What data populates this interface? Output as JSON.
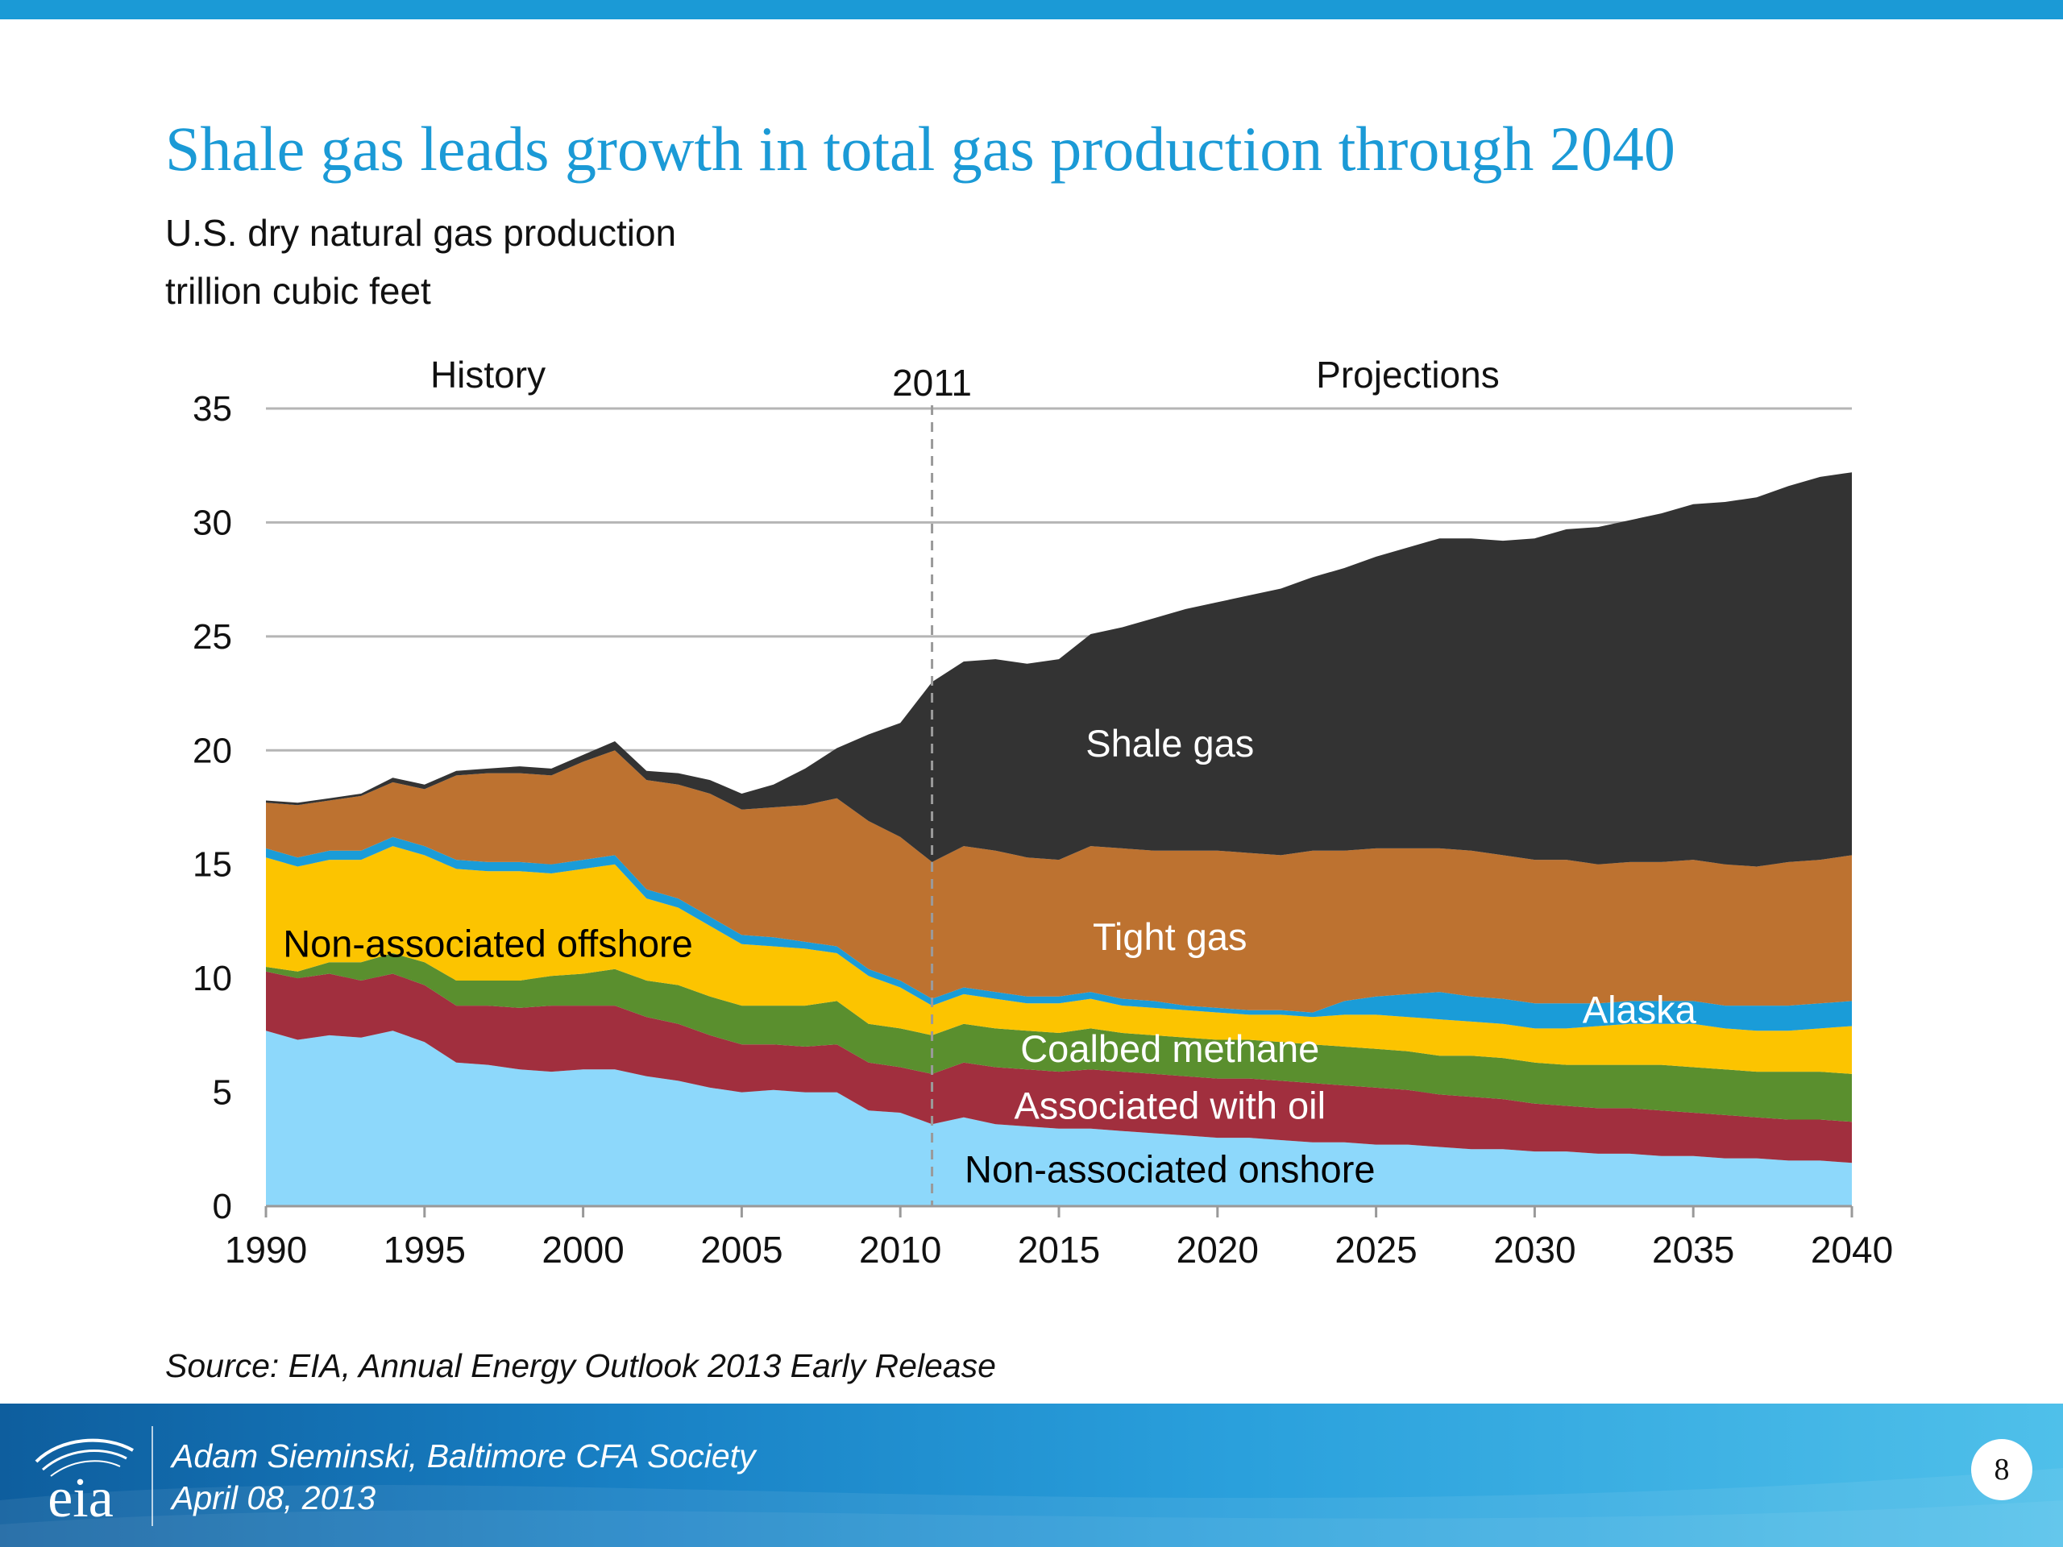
{
  "slide": {
    "title": "Shale gas leads growth in total gas production through 2040",
    "subtitle_line1": "U.S. dry natural gas production",
    "subtitle_line2": "trillion cubic feet",
    "source": "Source:  EIA, Annual Energy Outlook 2013 Early Release",
    "footer_line1": "Adam Sieminski, Baltimore CFA Society",
    "footer_line2": "April 08, 2013",
    "logo_text": "eia",
    "page_number": "8"
  },
  "colors": {
    "brand": "#1b9ad6",
    "non_associated_onshore": "#8dd8fb",
    "associated_with_oil": "#a12f3e",
    "coalbed_methane": "#5a8f2e",
    "non_associated_offshore": "#fcc400",
    "alaska": "#1a9cd8",
    "tight_gas": "#bd7230",
    "shale_gas": "#333333"
  },
  "chart_data": {
    "type": "area",
    "stacked": true,
    "x": [
      1990,
      1991,
      1992,
      1993,
      1994,
      1995,
      1996,
      1997,
      1998,
      1999,
      2000,
      2001,
      2002,
      2003,
      2004,
      2005,
      2006,
      2007,
      2008,
      2009,
      2010,
      2011,
      2012,
      2013,
      2014,
      2015,
      2016,
      2017,
      2018,
      2019,
      2020,
      2021,
      2022,
      2023,
      2024,
      2025,
      2026,
      2027,
      2028,
      2029,
      2030,
      2031,
      2032,
      2033,
      2034,
      2035,
      2036,
      2037,
      2038,
      2039,
      2040
    ],
    "series": [
      {
        "name": "Non-associated onshore",
        "color": "#8dd8fb",
        "values": [
          7.7,
          7.3,
          7.5,
          7.4,
          7.7,
          7.2,
          6.3,
          6.2,
          6.0,
          5.9,
          6.0,
          6.0,
          5.7,
          5.5,
          5.2,
          5.0,
          5.1,
          5.0,
          5.0,
          4.2,
          4.1,
          3.6,
          3.9,
          3.6,
          3.5,
          3.4,
          3.4,
          3.3,
          3.2,
          3.1,
          3.0,
          3.0,
          2.9,
          2.8,
          2.8,
          2.7,
          2.7,
          2.6,
          2.5,
          2.5,
          2.4,
          2.4,
          2.3,
          2.3,
          2.2,
          2.2,
          2.1,
          2.1,
          2.0,
          2.0,
          1.9
        ]
      },
      {
        "name": "Associated with oil",
        "color": "#a12f3e",
        "values": [
          2.6,
          2.7,
          2.7,
          2.5,
          2.5,
          2.5,
          2.5,
          2.6,
          2.7,
          2.9,
          2.8,
          2.8,
          2.6,
          2.5,
          2.3,
          2.1,
          2.0,
          2.0,
          2.1,
          2.1,
          2.0,
          2.2,
          2.4,
          2.5,
          2.5,
          2.5,
          2.6,
          2.6,
          2.6,
          2.6,
          2.6,
          2.6,
          2.6,
          2.6,
          2.5,
          2.5,
          2.4,
          2.3,
          2.3,
          2.2,
          2.1,
          2.0,
          2.0,
          2.0,
          2.0,
          1.9,
          1.9,
          1.8,
          1.8,
          1.8,
          1.8
        ]
      },
      {
        "name": "Coalbed methane",
        "color": "#5a8f2e",
        "values": [
          0.2,
          0.3,
          0.5,
          0.8,
          0.9,
          1.0,
          1.1,
          1.1,
          1.2,
          1.3,
          1.4,
          1.6,
          1.6,
          1.7,
          1.7,
          1.7,
          1.7,
          1.8,
          1.9,
          1.7,
          1.7,
          1.7,
          1.7,
          1.7,
          1.7,
          1.7,
          1.8,
          1.7,
          1.7,
          1.7,
          1.7,
          1.7,
          1.7,
          1.7,
          1.7,
          1.7,
          1.7,
          1.7,
          1.8,
          1.8,
          1.8,
          1.8,
          1.9,
          1.9,
          2.0,
          2.0,
          2.0,
          2.0,
          2.1,
          2.1,
          2.1
        ]
      },
      {
        "name": "Non-associated offshore",
        "color": "#fcc400",
        "values": [
          4.8,
          4.6,
          4.5,
          4.5,
          4.7,
          4.7,
          4.9,
          4.8,
          4.8,
          4.5,
          4.6,
          4.6,
          3.6,
          3.4,
          3.1,
          2.7,
          2.6,
          2.5,
          2.1,
          2.1,
          1.8,
          1.3,
          1.3,
          1.3,
          1.2,
          1.3,
          1.3,
          1.2,
          1.2,
          1.2,
          1.2,
          1.1,
          1.2,
          1.2,
          1.4,
          1.5,
          1.5,
          1.6,
          1.5,
          1.5,
          1.5,
          1.6,
          1.7,
          1.8,
          1.8,
          1.9,
          1.8,
          1.8,
          1.8,
          1.9,
          2.1
        ]
      },
      {
        "name": "Alaska",
        "color": "#1a9cd8",
        "values": [
          0.4,
          0.4,
          0.4,
          0.4,
          0.4,
          0.4,
          0.4,
          0.4,
          0.4,
          0.4,
          0.4,
          0.4,
          0.4,
          0.4,
          0.4,
          0.4,
          0.4,
          0.3,
          0.3,
          0.3,
          0.3,
          0.3,
          0.3,
          0.3,
          0.3,
          0.3,
          0.3,
          0.3,
          0.3,
          0.2,
          0.2,
          0.2,
          0.2,
          0.2,
          0.6,
          0.8,
          1.0,
          1.2,
          1.1,
          1.1,
          1.1,
          1.1,
          1.0,
          1.0,
          1.0,
          1.0,
          1.0,
          1.1,
          1.1,
          1.1,
          1.1
        ]
      },
      {
        "name": "Tight gas",
        "color": "#bd7230",
        "values": [
          2.0,
          2.3,
          2.2,
          2.4,
          2.4,
          2.5,
          3.7,
          3.9,
          3.9,
          3.9,
          4.3,
          4.6,
          4.8,
          5.0,
          5.4,
          5.5,
          5.7,
          6.0,
          6.5,
          6.5,
          6.3,
          6.0,
          6.2,
          6.2,
          6.1,
          6.0,
          6.4,
          6.6,
          6.6,
          6.8,
          6.9,
          6.9,
          6.8,
          7.1,
          6.6,
          6.5,
          6.4,
          6.3,
          6.4,
          6.3,
          6.3,
          6.3,
          6.1,
          6.1,
          6.1,
          6.2,
          6.2,
          6.1,
          6.3,
          6.3,
          6.4
        ]
      },
      {
        "name": "Shale gas",
        "color": "#333333",
        "values": [
          0.1,
          0.1,
          0.1,
          0.1,
          0.2,
          0.2,
          0.2,
          0.2,
          0.3,
          0.3,
          0.3,
          0.4,
          0.4,
          0.5,
          0.6,
          0.7,
          1.0,
          1.6,
          2.2,
          3.8,
          5.0,
          7.9,
          8.1,
          8.4,
          8.5,
          8.8,
          9.3,
          9.7,
          10.2,
          10.6,
          10.9,
          11.3,
          11.7,
          12.0,
          12.4,
          12.8,
          13.2,
          13.6,
          13.7,
          13.8,
          14.1,
          14.5,
          14.8,
          15.0,
          15.3,
          15.6,
          15.9,
          16.2,
          16.5,
          16.8,
          16.8
        ]
      }
    ],
    "xlim": [
      1990,
      2040
    ],
    "ylim": [
      0,
      35
    ],
    "x_ticks": [
      1990,
      1995,
      2000,
      2005,
      2010,
      2015,
      2020,
      2025,
      2030,
      2035,
      2040
    ],
    "y_ticks": [
      0,
      5,
      10,
      15,
      20,
      25,
      30,
      35
    ],
    "grid": "horizontal",
    "divider_year": 2011,
    "annotations": {
      "history": "History",
      "divider": "2011",
      "projections": "Projections"
    },
    "series_labels": [
      {
        "text": "Shale gas",
        "x": 2018.5,
        "y": 20.3,
        "color": "#ffffff"
      },
      {
        "text": "Tight gas",
        "x": 2018.5,
        "y": 11.8,
        "color": "#ffffff"
      },
      {
        "text": "Non-associated offshore",
        "x": 1997,
        "y": 11.5,
        "color": "#000000"
      },
      {
        "text": "Alaska",
        "x": 2033.3,
        "y": 8.6,
        "color": "#ffffff"
      },
      {
        "text": "Coalbed methane",
        "x": 2018.5,
        "y": 6.9,
        "color": "#ffffff"
      },
      {
        "text": "Associated with oil",
        "x": 2018.5,
        "y": 4.4,
        "color": "#ffffff"
      },
      {
        "text": "Non-associated onshore",
        "x": 2018.5,
        "y": 1.6,
        "color": "#000000"
      }
    ]
  }
}
